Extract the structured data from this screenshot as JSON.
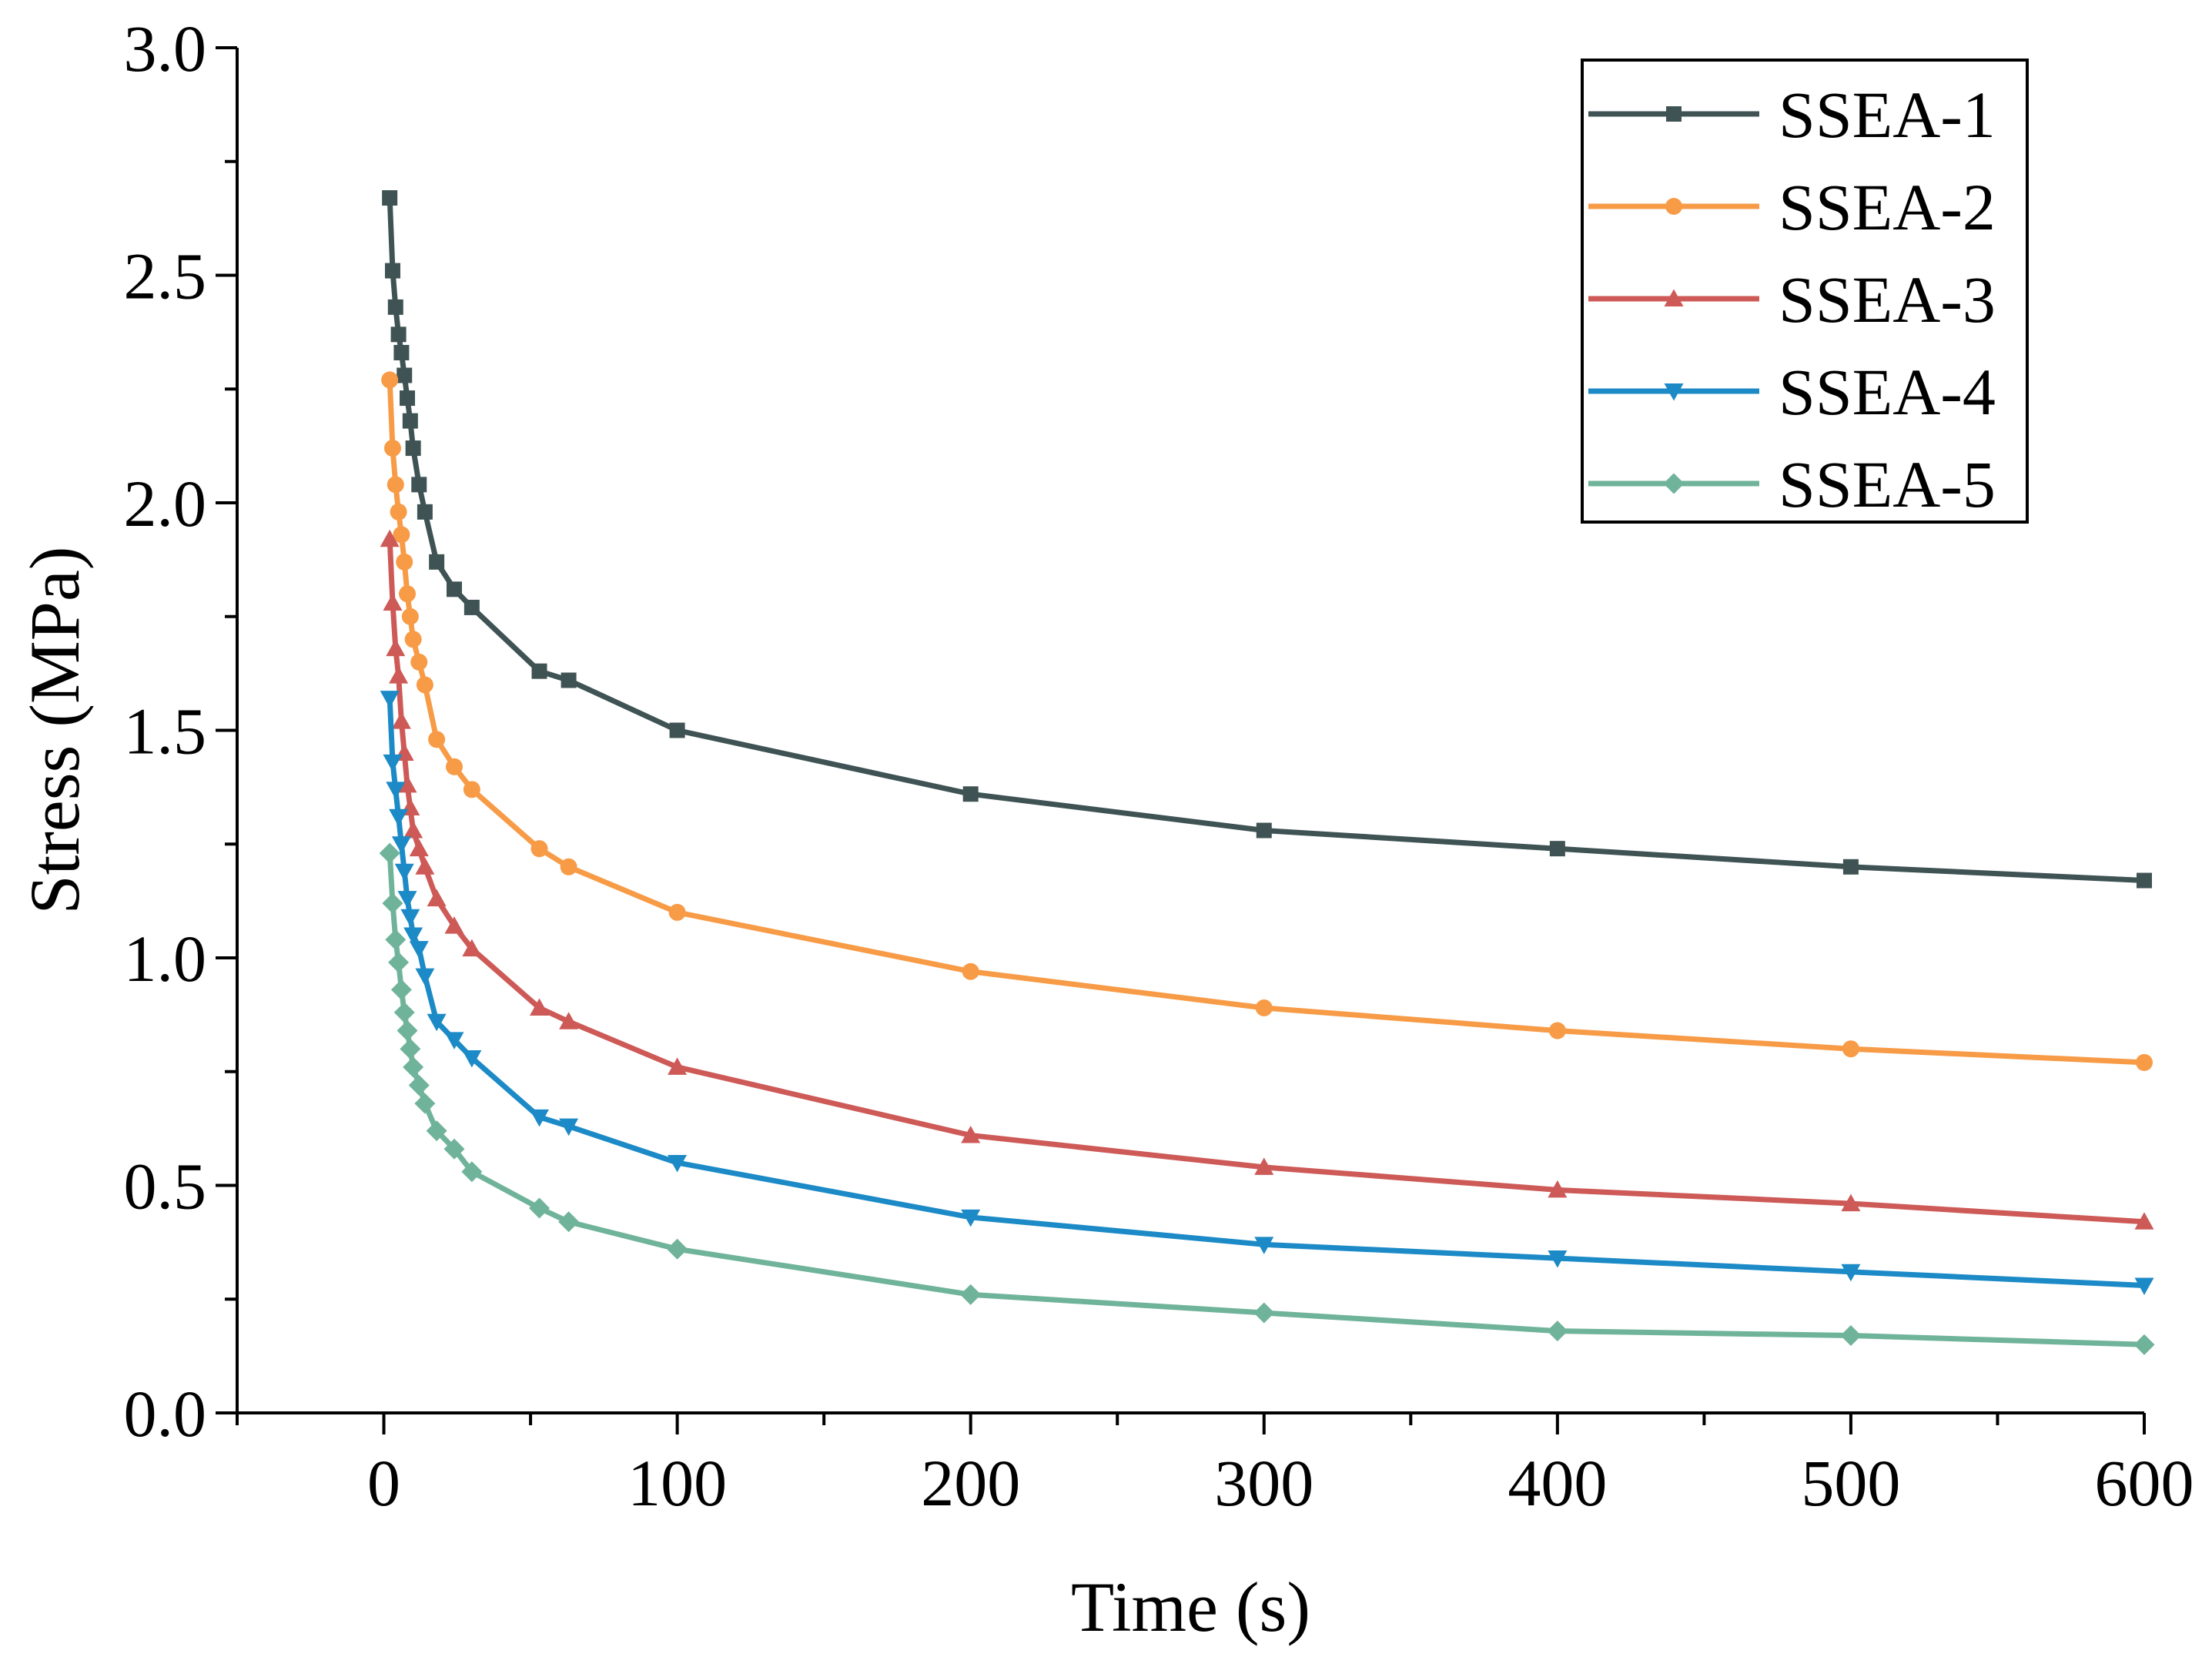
{
  "chart_data": {
    "type": "line",
    "title": "",
    "xlabel": "Time (s)",
    "ylabel": "Stress (MPa)",
    "xlim": [
      -50,
      600
    ],
    "ylim": [
      0.0,
      3.0
    ],
    "x_ticks": [
      0,
      100,
      200,
      300,
      400,
      500,
      600
    ],
    "x_tick_labels": [
      "0",
      "100",
      "200",
      "300",
      "400",
      "500",
      "600"
    ],
    "y_ticks": [
      0.0,
      0.5,
      1.0,
      1.5,
      2.0,
      2.5,
      3.0
    ],
    "y_tick_labels": [
      "0.0",
      "0.5",
      "1.0",
      "1.5",
      "2.0",
      "2.5",
      "3.0"
    ],
    "grid": false,
    "legend_position": "top-right",
    "series": [
      {
        "name": "SSEA-1",
        "color": "#3f5354",
        "marker": "square",
        "x": [
          2,
          3,
          4,
          5,
          6,
          7,
          8,
          9,
          10,
          12,
          14,
          18,
          24,
          30,
          53,
          63,
          100,
          200,
          300,
          400,
          500,
          600
        ],
        "y": [
          2.67,
          2.51,
          2.43,
          2.37,
          2.33,
          2.28,
          2.23,
          2.18,
          2.12,
          2.04,
          1.98,
          1.87,
          1.81,
          1.77,
          1.63,
          1.61,
          1.5,
          1.36,
          1.28,
          1.24,
          1.2,
          1.17
        ]
      },
      {
        "name": "SSEA-2",
        "color": "#f79b47",
        "marker": "circle",
        "x": [
          2,
          3,
          4,
          5,
          6,
          7,
          8,
          9,
          10,
          12,
          14,
          18,
          24,
          30,
          53,
          63,
          100,
          200,
          300,
          400,
          500,
          600
        ],
        "y": [
          2.27,
          2.12,
          2.04,
          1.98,
          1.93,
          1.87,
          1.8,
          1.75,
          1.7,
          1.65,
          1.6,
          1.48,
          1.42,
          1.37,
          1.24,
          1.2,
          1.1,
          0.97,
          0.89,
          0.84,
          0.8,
          0.77
        ]
      },
      {
        "name": "SSEA-3",
        "color": "#cd5a57",
        "marker": "triangle-up",
        "x": [
          2,
          3,
          4,
          5,
          6,
          7,
          8,
          9,
          10,
          12,
          14,
          18,
          24,
          30,
          53,
          63,
          100,
          200,
          300,
          400,
          500,
          600
        ],
        "y": [
          1.92,
          1.78,
          1.68,
          1.62,
          1.52,
          1.45,
          1.38,
          1.33,
          1.28,
          1.24,
          1.2,
          1.13,
          1.07,
          1.02,
          0.89,
          0.86,
          0.76,
          0.61,
          0.54,
          0.49,
          0.46,
          0.42
        ]
      },
      {
        "name": "SSEA-4",
        "color": "#1c8ac6",
        "marker": "triangle-down",
        "x": [
          2,
          3,
          4,
          5,
          6,
          7,
          8,
          9,
          10,
          12,
          14,
          18,
          24,
          30,
          53,
          63,
          100,
          200,
          300,
          400,
          500,
          600
        ],
        "y": [
          1.57,
          1.43,
          1.37,
          1.31,
          1.25,
          1.19,
          1.13,
          1.09,
          1.05,
          1.02,
          0.96,
          0.86,
          0.82,
          0.78,
          0.65,
          0.63,
          0.55,
          0.43,
          0.37,
          0.34,
          0.31,
          0.28
        ]
      },
      {
        "name": "SSEA-5",
        "color": "#70b39b",
        "marker": "diamond",
        "x": [
          2,
          3,
          4,
          5,
          6,
          7,
          8,
          9,
          10,
          12,
          14,
          18,
          24,
          30,
          53,
          63,
          100,
          200,
          300,
          400,
          500,
          600
        ],
        "y": [
          1.23,
          1.12,
          1.04,
          0.99,
          0.93,
          0.88,
          0.84,
          0.8,
          0.76,
          0.72,
          0.68,
          0.62,
          0.58,
          0.53,
          0.45,
          0.42,
          0.36,
          0.26,
          0.22,
          0.18,
          0.17,
          0.15
        ]
      }
    ]
  }
}
